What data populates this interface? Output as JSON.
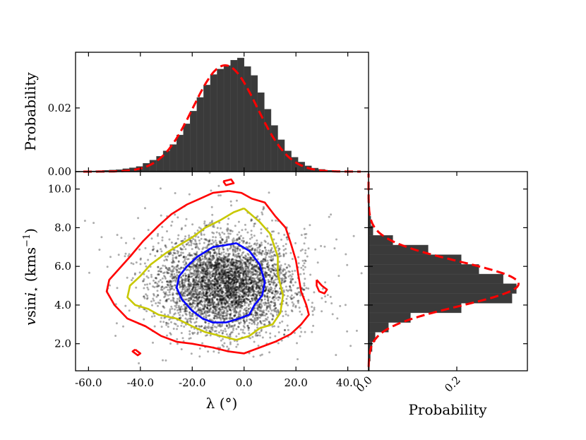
{
  "chart_data": [
    {
      "panel": "top-marginal",
      "type": "bar",
      "ylabel": "Probability",
      "xlim": [
        -65,
        48
      ],
      "ylim": [
        0,
        0.0375
      ],
      "yticks": [
        {
          "v": 0.0,
          "label": "0.00"
        },
        {
          "v": 0.02,
          "label": "0.02"
        }
      ],
      "bin_width": 2.6,
      "bins": [
        {
          "x": -65.0,
          "v": 0.0001
        },
        {
          "x": -62.4,
          "v": 0.0001
        },
        {
          "x": -59.8,
          "v": 0.0002
        },
        {
          "x": -57.2,
          "v": 0.0003
        },
        {
          "x": -54.6,
          "v": 0.0004
        },
        {
          "x": -52.0,
          "v": 0.0005
        },
        {
          "x": -49.4,
          "v": 0.0006
        },
        {
          "x": -46.8,
          "v": 0.0009
        },
        {
          "x": -44.2,
          "v": 0.0012
        },
        {
          "x": -41.6,
          "v": 0.0016
        },
        {
          "x": -39.0,
          "v": 0.0026
        },
        {
          "x": -36.4,
          "v": 0.0036
        },
        {
          "x": -33.8,
          "v": 0.0048
        },
        {
          "x": -31.2,
          "v": 0.0065
        },
        {
          "x": -28.6,
          "v": 0.0085
        },
        {
          "x": -26.0,
          "v": 0.0115
        },
        {
          "x": -23.4,
          "v": 0.015
        },
        {
          "x": -20.8,
          "v": 0.019
        },
        {
          "x": -18.2,
          "v": 0.0233
        },
        {
          "x": -15.6,
          "v": 0.0272
        },
        {
          "x": -13.0,
          "v": 0.0305
        },
        {
          "x": -10.4,
          "v": 0.0322
        },
        {
          "x": -7.8,
          "v": 0.0333
        },
        {
          "x": -5.2,
          "v": 0.035
        },
        {
          "x": -2.6,
          "v": 0.0357
        },
        {
          "x": 0.0,
          "v": 0.033
        },
        {
          "x": 2.6,
          "v": 0.0302
        },
        {
          "x": 5.2,
          "v": 0.0248
        },
        {
          "x": 7.8,
          "v": 0.0196
        },
        {
          "x": 10.4,
          "v": 0.0145
        },
        {
          "x": 13.0,
          "v": 0.01
        },
        {
          "x": 15.6,
          "v": 0.0065
        },
        {
          "x": 18.2,
          "v": 0.0045
        },
        {
          "x": 20.8,
          "v": 0.003
        },
        {
          "x": 23.4,
          "v": 0.0018
        },
        {
          "x": 26.0,
          "v": 0.0011
        },
        {
          "x": 28.6,
          "v": 0.0007
        },
        {
          "x": 31.2,
          "v": 0.0004
        },
        {
          "x": 33.8,
          "v": 0.0002
        },
        {
          "x": 36.4,
          "v": 0.0001
        },
        {
          "x": 39.0,
          "v": 0.0001
        }
      ],
      "fit": {
        "style": "dashed",
        "color": "#ff0000",
        "mean": -7.3,
        "sigma": 12.3,
        "peak": 0.0334,
        "range": [
          -62,
          45
        ]
      }
    },
    {
      "panel": "joint",
      "type": "scatter",
      "xlabel": "λ (°)",
      "ylabel": "vsini⋆ (kms−1)",
      "ylabel_parts": {
        "v": "v",
        "sin": "sin",
        "i": "i",
        "star": "⋆",
        "units_open": " (kms",
        "exp": "−1",
        "units_close": ")"
      },
      "xlim": [
        -65,
        48
      ],
      "ylim": [
        0.6,
        10.9
      ],
      "xticks": [
        {
          "v": -60,
          "label": "-60.0"
        },
        {
          "v": -40,
          "label": "-40.0"
        },
        {
          "v": -20,
          "label": "-20.0"
        },
        {
          "v": 0,
          "label": "0.0"
        },
        {
          "v": 20,
          "label": "20.0"
        },
        {
          "v": 40,
          "label": "40.0"
        }
      ],
      "yticks": [
        {
          "v": 2,
          "label": "2.0"
        },
        {
          "v": 4,
          "label": "4.0"
        },
        {
          "v": 6,
          "label": "6.0"
        },
        {
          "v": 8,
          "label": "8.0"
        },
        {
          "v": 10,
          "label": "10.0"
        }
      ],
      "scatter": {
        "color": "#000000",
        "center": [
          -7.3,
          5.1
        ],
        "sigma": [
          12.3,
          1.2
        ]
      },
      "contours": [
        {
          "level": "inner",
          "color": "#0000ff",
          "points": [
            [
              -3,
              7.2
            ],
            [
              2,
              6.8
            ],
            [
              6,
              6.1
            ],
            [
              8,
              5.2
            ],
            [
              7,
              4.5
            ],
            [
              4,
              4.0
            ],
            [
              2,
              3.5
            ],
            [
              -2,
              3.3
            ],
            [
              -7,
              3.1
            ],
            [
              -12,
              3.1
            ],
            [
              -16,
              3.3
            ],
            [
              -20,
              3.7
            ],
            [
              -24,
              4.3
            ],
            [
              -26,
              4.9
            ],
            [
              -25,
              5.5
            ],
            [
              -22,
              6.0
            ],
            [
              -18,
              6.5
            ],
            [
              -12,
              7.0
            ],
            [
              -7,
              7.1
            ],
            [
              -3,
              7.2
            ]
          ]
        },
        {
          "level": "middle",
          "color": "#c8c800",
          "points": [
            [
              0,
              9.0
            ],
            [
              6,
              8.3
            ],
            [
              10,
              7.7
            ],
            [
              13,
              6.5
            ],
            [
              13,
              5.6
            ],
            [
              15,
              4.5
            ],
            [
              14,
              3.6
            ],
            [
              11,
              3.0
            ],
            [
              6,
              2.8
            ],
            [
              2,
              2.4
            ],
            [
              -3,
              2.2
            ],
            [
              -9,
              2.4
            ],
            [
              -15,
              2.6
            ],
            [
              -20,
              2.9
            ],
            [
              -26,
              3.3
            ],
            [
              -33,
              3.5
            ],
            [
              -37,
              3.8
            ],
            [
              -42,
              4.0
            ],
            [
              -45,
              4.4
            ],
            [
              -44,
              5.0
            ],
            [
              -40,
              5.5
            ],
            [
              -36,
              6.1
            ],
            [
              -30,
              6.7
            ],
            [
              -25,
              7.1
            ],
            [
              -20,
              7.5
            ],
            [
              -15,
              8.0
            ],
            [
              -9,
              8.4
            ],
            [
              -4,
              8.8
            ],
            [
              0,
              9.0
            ]
          ]
        },
        {
          "level": "outer",
          "color": "#ff0000",
          "points": [
            [
              -6,
              9.9
            ],
            [
              -1,
              9.8
            ],
            [
              3,
              9.5
            ],
            [
              8,
              9.3
            ],
            [
              12,
              8.6
            ],
            [
              16,
              8.0
            ],
            [
              18,
              7.2
            ],
            [
              20,
              6.3
            ],
            [
              21,
              5.5
            ],
            [
              22,
              4.7
            ],
            [
              24,
              4.0
            ],
            [
              25,
              3.5
            ],
            [
              22,
              3.0
            ],
            [
              18,
              2.5
            ],
            [
              12,
              2.1
            ],
            [
              6,
              1.8
            ],
            [
              0,
              1.5
            ],
            [
              -6,
              1.6
            ],
            [
              -12,
              1.8
            ],
            [
              -20,
              2.0
            ],
            [
              -26,
              2.1
            ],
            [
              -32,
              2.4
            ],
            [
              -38,
              2.9
            ],
            [
              -45,
              3.3
            ],
            [
              -50,
              4.0
            ],
            [
              -53,
              4.7
            ],
            [
              -52,
              5.3
            ],
            [
              -48,
              5.9
            ],
            [
              -44,
              6.5
            ],
            [
              -39,
              7.3
            ],
            [
              -33,
              8.1
            ],
            [
              -28,
              8.7
            ],
            [
              -22,
              9.2
            ],
            [
              -17,
              9.5
            ],
            [
              -12,
              9.8
            ],
            [
              -6,
              9.9
            ]
          ]
        },
        {
          "level": "outer-island",
          "color": "#ff0000",
          "points": [
            [
              28,
              5.3
            ],
            [
              30,
              5.0
            ],
            [
              32,
              4.8
            ],
            [
              31,
              4.6
            ],
            [
              29,
              4.7
            ],
            [
              28,
              5.0
            ],
            [
              28,
              5.3
            ]
          ]
        },
        {
          "level": "outer-island",
          "color": "#ff0000",
          "points": [
            [
              -42,
              1.7
            ],
            [
              -40,
              1.5
            ],
            [
              -41,
              1.4
            ],
            [
              -43,
              1.6
            ],
            [
              -42,
              1.7
            ]
          ]
        },
        {
          "level": "outer-island",
          "color": "#ff0000",
          "points": [
            [
              -8,
              10.4
            ],
            [
              -5,
              10.5
            ],
            [
              -4,
              10.3
            ],
            [
              -7,
              10.2
            ],
            [
              -8,
              10.4
            ]
          ]
        }
      ]
    },
    {
      "panel": "right-marginal",
      "type": "bar",
      "orientation": "horizontal",
      "xlabel": "Probability",
      "xlim": [
        0,
        0.36
      ],
      "xticks": [
        {
          "v": 0.0,
          "label": "0.0"
        },
        {
          "v": 0.2,
          "label": "0.2"
        }
      ],
      "bin_width": 0.5,
      "bins": [
        {
          "y": 0.6,
          "v": 0.002
        },
        {
          "y": 1.1,
          "v": 0.004
        },
        {
          "y": 1.6,
          "v": 0.008
        },
        {
          "y": 2.1,
          "v": 0.015
        },
        {
          "y": 2.6,
          "v": 0.045
        },
        {
          "y": 3.1,
          "v": 0.095
        },
        {
          "y": 3.6,
          "v": 0.21
        },
        {
          "y": 4.1,
          "v": 0.325
        },
        {
          "y": 4.6,
          "v": 0.335
        },
        {
          "y": 5.1,
          "v": 0.305
        },
        {
          "y": 5.6,
          "v": 0.25
        },
        {
          "y": 6.1,
          "v": 0.21
        },
        {
          "y": 6.6,
          "v": 0.135
        },
        {
          "y": 7.1,
          "v": 0.055
        },
        {
          "y": 7.6,
          "v": 0.01
        },
        {
          "y": 8.1,
          "v": 0.005
        },
        {
          "y": 8.6,
          "v": 0.003
        },
        {
          "y": 9.1,
          "v": 0.002
        },
        {
          "y": 9.6,
          "v": 0.001
        }
      ],
      "fit": {
        "style": "dashed",
        "color": "#ff0000",
        "mean": 5.1,
        "sigma": 1.15,
        "peak": 0.34,
        "range": [
          0.8,
          10.8
        ]
      }
    }
  ]
}
